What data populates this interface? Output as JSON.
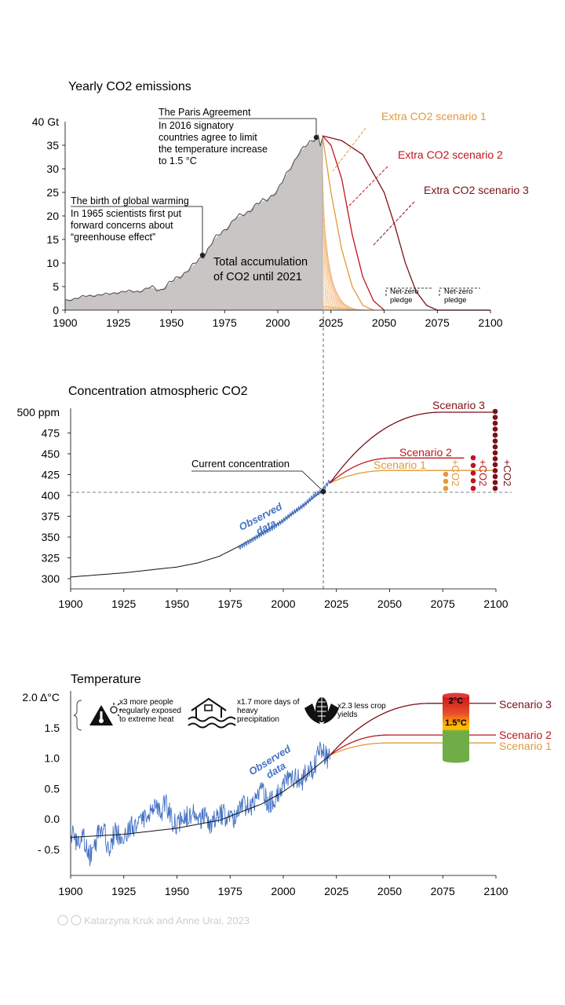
{
  "colors": {
    "observed": "#4472c4",
    "scenario1": "#e09a3a",
    "scenario2": "#c0151e",
    "scenario3": "#7b1117",
    "fill": "#c9c5c5",
    "fillLine": "#555555",
    "green": "#70ad47",
    "yellow": "#ffc000",
    "red": "#d91f1f"
  },
  "panels": {
    "emissions": {
      "title": "Yearly CO2 emissions",
      "accumulation_label": "Total accumulation\nof CO2 until 2021",
      "paris": {
        "year": 2016,
        "value": 36.5,
        "title": "The Paris Agreement",
        "text": "In 2016 signatory\ncountries agree to limit\nthe temperature increase\nto 1.5 °C"
      },
      "birth": {
        "year": 1965,
        "value": 11.5,
        "title": "The birth of global warming",
        "text": "In 1965 scientists first put\nforward concerns about\n“greenhouse effect”"
      },
      "scenario_labels": [
        "Extra  CO2 scenario 1",
        "Extra  CO2 scenario 2",
        "Extra  CO2 scenario 3"
      ],
      "pledge1": "Net-zero\npledge",
      "pledge2": "Net-zero\npledge"
    },
    "concentration": {
      "title": "Concentration atmospheric CO2",
      "current_label": "Current concentration",
      "observed_label": "Observed\ndata",
      "scenario_labels": [
        "Scenario 1",
        "Scenario 2",
        "Scenario 3"
      ],
      "plus_label": "+CO2"
    },
    "temperature": {
      "title": "Temperature",
      "observed_label": "Observed\ndata",
      "scenario_labels": [
        "Scenario 1",
        "Scenario 2",
        "Scenario 3"
      ],
      "impacts": [
        {
          "icon": "heat-thermometer-icon",
          "text": "x3 more people\nregularly exposed\nto extreme heat"
        },
        {
          "icon": "flood-house-icon",
          "text": "x1.7 more days of\nheavy\nprecipitation"
        },
        {
          "icon": "corn-icon",
          "text": "x2.3 less crop\nyields"
        }
      ],
      "gauge_top": "2°C",
      "gauge_mid": "1.5°C"
    }
  },
  "credit": "Katarzyna Kruk and Anne Urai, 2023",
  "chart_data": [
    {
      "type": "area",
      "title": "Yearly CO2 emissions",
      "xlim": [
        1900,
        2100
      ],
      "ylim": [
        0,
        40
      ],
      "xticks": [
        1900,
        1925,
        1950,
        1975,
        2000,
        2025,
        2050,
        2075,
        2100
      ],
      "yticks": [
        0,
        5,
        10,
        15,
        20,
        25,
        30,
        35
      ],
      "ytick_labels": [
        "0",
        "5",
        "10",
        "15",
        "20",
        "25",
        "30",
        "35"
      ],
      "ytop_label": "40 Gt",
      "observed": {
        "x": [
          1900,
          1905,
          1910,
          1915,
          1920,
          1925,
          1930,
          1935,
          1940,
          1945,
          1950,
          1955,
          1960,
          1965,
          1970,
          1975,
          1980,
          1985,
          1990,
          1995,
          2000,
          2005,
          2010,
          2015,
          2019,
          2020,
          2021
        ],
        "y": [
          2.0,
          2.5,
          3.0,
          3.2,
          3.4,
          3.8,
          4.0,
          4.0,
          4.8,
          4.3,
          6.0,
          7.5,
          9.4,
          11.5,
          15.0,
          17.0,
          19.5,
          20.5,
          22.5,
          23.5,
          25.5,
          29.5,
          33.5,
          35.5,
          37.0,
          35.0,
          37.0
        ]
      },
      "series": [
        {
          "name": "Extra  CO2 scenario 1",
          "x": [
            2021,
            2025,
            2030,
            2035,
            2040,
            2045
          ],
          "y": [
            37,
            25,
            13,
            5,
            1,
            0
          ]
        },
        {
          "name": "Extra  CO2 scenario 2",
          "x": [
            2021,
            2025,
            2030,
            2035,
            2040,
            2045,
            2050
          ],
          "y": [
            37,
            35,
            28,
            16,
            7,
            2,
            0
          ]
        },
        {
          "name": "Extra  CO2 scenario 3",
          "x": [
            2021,
            2030,
            2040,
            2050,
            2055,
            2060,
            2065,
            2070,
            2075
          ],
          "y": [
            37,
            36,
            33,
            25,
            18,
            10,
            4,
            1,
            0
          ]
        }
      ],
      "annotations": [
        "The Paris Agreement",
        "The birth of global warming",
        "Total accumulation of CO2 until 2021",
        "Net-zero pledge"
      ]
    },
    {
      "type": "line",
      "title": "Concentration atmospheric CO2",
      "xlim": [
        1900,
        2100
      ],
      "ylim": [
        300,
        500
      ],
      "xticks": [
        1900,
        1925,
        1950,
        1975,
        2000,
        2025,
        2050,
        2075,
        2100
      ],
      "yticks": [
        300,
        325,
        350,
        375,
        400,
        425,
        450,
        475
      ],
      "ytick_labels": [
        "300",
        "325",
        "350",
        "375",
        "400",
        "425",
        "450",
        "475"
      ],
      "ytop_label": "500 ppm",
      "trend": {
        "x": [
          1900,
          1925,
          1950,
          1960,
          1970,
          1980,
          1990,
          2000,
          2010,
          2018
        ],
        "y": [
          302,
          307,
          314,
          319,
          327,
          340,
          354,
          370,
          389,
          405
        ]
      },
      "observed": {
        "x": [
          1979,
          1985,
          1990,
          1995,
          2000,
          2005,
          2010,
          2015,
          2018,
          2022
        ],
        "y": [
          337,
          346,
          354,
          361,
          370,
          380,
          389,
          401,
          405,
          418
        ]
      },
      "current": {
        "x": 2018,
        "y": 405
      },
      "series": [
        {
          "name": "Scenario 1",
          "plateau": 430
        },
        {
          "name": "Scenario 2",
          "plateau": 445
        },
        {
          "name": "Scenario 3",
          "plateau": 500
        }
      ]
    },
    {
      "type": "line",
      "title": "Temperature",
      "xlim": [
        1900,
        2100
      ],
      "ylim": [
        -0.75,
        2.0
      ],
      "xticks": [
        1900,
        1925,
        1950,
        1975,
        2000,
        2025,
        2050,
        2075,
        2100
      ],
      "yticks": [
        -0.5,
        0.0,
        0.5,
        1.0,
        1.5
      ],
      "ytick_labels": [
        "- 0.5",
        "0.0",
        "0.5",
        "1.0",
        "1.5"
      ],
      "ytop_label": "2.0 Δ°C",
      "trend": {
        "x": [
          1900,
          1925,
          1950,
          1970,
          1990,
          2000,
          2010,
          2022
        ],
        "y": [
          -0.3,
          -0.25,
          -0.15,
          -0.02,
          0.25,
          0.45,
          0.7,
          1.05
        ]
      },
      "observed": {
        "x": [
          1900,
          1903,
          1906,
          1909,
          1912,
          1915,
          1918,
          1921,
          1924,
          1927,
          1930,
          1933,
          1936,
          1939,
          1942,
          1945,
          1948,
          1951,
          1954,
          1957,
          1960,
          1963,
          1966,
          1969,
          1972,
          1975,
          1978,
          1981,
          1984,
          1987,
          1990,
          1993,
          1996,
          1999,
          2002,
          2005,
          2008,
          2011,
          2014,
          2017,
          2020,
          2022
        ],
        "y": [
          -0.2,
          -0.45,
          -0.3,
          -0.6,
          -0.35,
          -0.1,
          -0.5,
          -0.2,
          -0.35,
          -0.15,
          -0.1,
          0.05,
          -0.05,
          0.2,
          0.1,
          0.25,
          -0.05,
          -0.1,
          0.05,
          0.1,
          -0.05,
          0.05,
          -0.1,
          0.05,
          0.1,
          -0.05,
          0.1,
          0.3,
          0.15,
          0.35,
          0.45,
          0.25,
          0.35,
          0.5,
          0.65,
          0.7,
          0.6,
          0.75,
          0.8,
          1.1,
          1.05,
          0.95
        ]
      },
      "series": [
        {
          "name": "Scenario 1",
          "plateau": 1.25
        },
        {
          "name": "Scenario 2",
          "plateau": 1.38
        },
        {
          "name": "Scenario 3",
          "plateau": 1.9
        }
      ]
    }
  ]
}
